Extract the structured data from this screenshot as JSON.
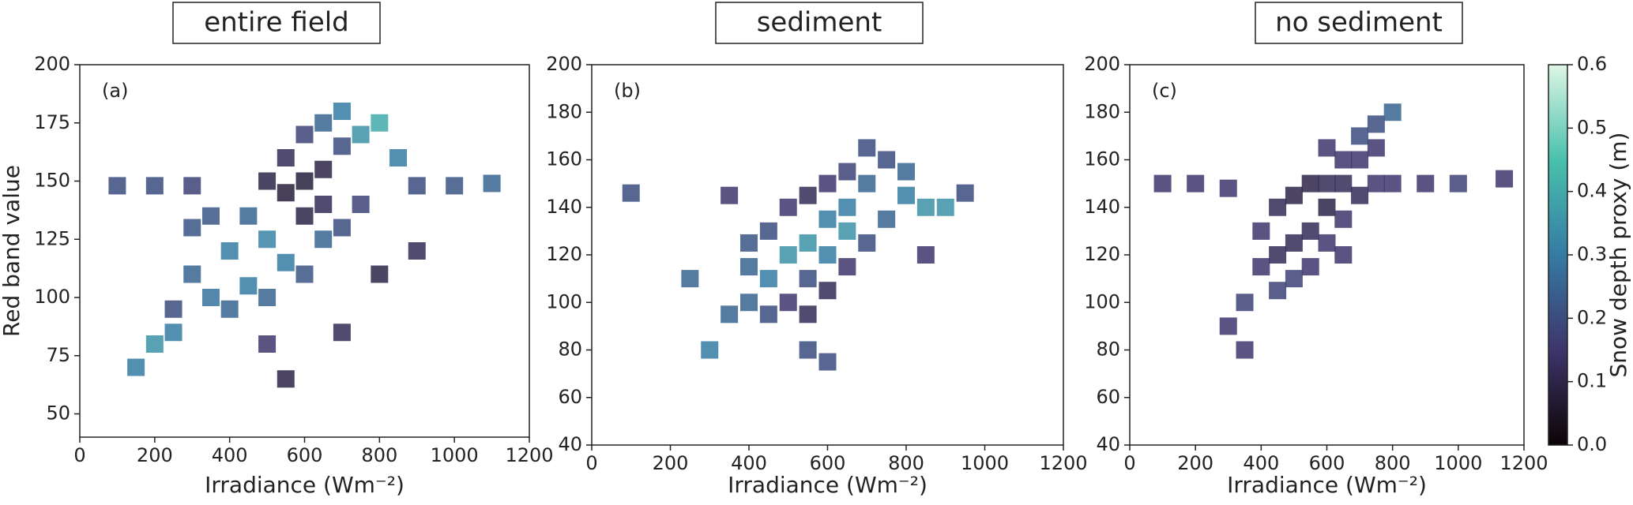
{
  "chart_data": [
    {
      "type": "scatter",
      "title": "entire field",
      "panel_label": "(a)",
      "xlabel": "Irradiance (Wm⁻²)",
      "ylabel": "Red band value",
      "xlim": [
        0,
        1200
      ],
      "xticks": [
        0,
        200,
        400,
        600,
        800,
        1000,
        1200
      ],
      "ylim": [
        40,
        200
      ],
      "yticks": [
        50,
        75,
        100,
        125,
        150,
        175,
        200
      ],
      "x": [
        100,
        200,
        300,
        900,
        1000,
        1100,
        500,
        550,
        600,
        650,
        600,
        550,
        650,
        650,
        700,
        750,
        800,
        700,
        600,
        850,
        300,
        350,
        400,
        450,
        500,
        550,
        400,
        300,
        350,
        500,
        600,
        650,
        700,
        750,
        250,
        450,
        150,
        200,
        250,
        500,
        700,
        800,
        900,
        550
      ],
      "y": [
        148,
        148,
        148,
        148,
        148,
        149,
        150,
        145,
        150,
        155,
        135,
        160,
        140,
        175,
        180,
        170,
        175,
        165,
        170,
        160,
        110,
        100,
        120,
        105,
        125,
        115,
        95,
        130,
        135,
        100,
        110,
        125,
        130,
        140,
        95,
        135,
        70,
        80,
        85,
        80,
        85,
        110,
        120,
        65
      ],
      "values": [
        0.2,
        0.2,
        0.18,
        0.2,
        0.22,
        0.25,
        0.1,
        0.08,
        0.08,
        0.1,
        0.1,
        0.12,
        0.12,
        0.25,
        0.3,
        0.35,
        0.4,
        0.2,
        0.18,
        0.3,
        0.25,
        0.28,
        0.3,
        0.3,
        0.32,
        0.3,
        0.25,
        0.22,
        0.22,
        0.25,
        0.22,
        0.25,
        0.2,
        0.18,
        0.2,
        0.25,
        0.3,
        0.35,
        0.3,
        0.15,
        0.12,
        0.1,
        0.12,
        0.1
      ]
    },
    {
      "type": "scatter",
      "title": "sediment",
      "panel_label": "(b)",
      "xlabel": "Irradiance (Wm⁻²)",
      "xlim": [
        0,
        1200
      ],
      "xticks": [
        0,
        200,
        400,
        600,
        800,
        1000,
        1200
      ],
      "ylim": [
        40,
        200
      ],
      "yticks": [
        40,
        60,
        80,
        100,
        120,
        140,
        160,
        180,
        200
      ],
      "x": [
        400,
        450,
        500,
        550,
        600,
        650,
        700,
        750,
        700,
        650,
        600,
        550,
        500,
        450,
        400,
        400,
        450,
        500,
        550,
        600,
        650,
        700,
        750,
        800,
        850,
        800,
        600,
        650,
        550,
        350,
        300,
        250,
        550,
        600,
        900,
        100,
        950,
        350,
        850
      ],
      "y": [
        100,
        110,
        120,
        125,
        135,
        140,
        150,
        160,
        165,
        155,
        150,
        145,
        140,
        130,
        125,
        115,
        95,
        100,
        95,
        105,
        115,
        125,
        135,
        145,
        140,
        155,
        120,
        130,
        110,
        95,
        80,
        110,
        80,
        75,
        140,
        146,
        146,
        145,
        120
      ],
      "values": [
        0.25,
        0.3,
        0.35,
        0.35,
        0.3,
        0.3,
        0.25,
        0.2,
        0.2,
        0.18,
        0.15,
        0.12,
        0.15,
        0.2,
        0.22,
        0.25,
        0.2,
        0.15,
        0.12,
        0.12,
        0.15,
        0.2,
        0.25,
        0.3,
        0.35,
        0.25,
        0.3,
        0.35,
        0.2,
        0.25,
        0.3,
        0.25,
        0.2,
        0.2,
        0.35,
        0.2,
        0.2,
        0.15,
        0.15
      ]
    },
    {
      "type": "scatter",
      "title": "no sediment",
      "panel_label": "(c)",
      "xlabel": "Irradiance (Wm⁻²)",
      "xlim": [
        0,
        1200
      ],
      "xticks": [
        0,
        200,
        400,
        600,
        800,
        1000,
        1200
      ],
      "ylim": [
        40,
        200
      ],
      "yticks": [
        40,
        60,
        80,
        100,
        120,
        140,
        160,
        180,
        200
      ],
      "x": [
        450,
        500,
        550,
        600,
        650,
        700,
        750,
        700,
        650,
        600,
        550,
        500,
        450,
        400,
        400,
        450,
        500,
        550,
        600,
        650,
        700,
        750,
        800,
        800,
        350,
        300,
        350,
        100,
        200,
        300,
        900,
        1000,
        1140,
        750,
        650,
        600
      ],
      "y": [
        120,
        125,
        130,
        140,
        150,
        160,
        165,
        145,
        135,
        125,
        115,
        110,
        105,
        115,
        130,
        140,
        145,
        150,
        150,
        160,
        170,
        175,
        150,
        180,
        100,
        90,
        80,
        150,
        150,
        148,
        150,
        150,
        152,
        150,
        120,
        165
      ],
      "values": [
        0.12,
        0.12,
        0.12,
        0.1,
        0.12,
        0.15,
        0.15,
        0.12,
        0.15,
        0.15,
        0.15,
        0.18,
        0.18,
        0.15,
        0.15,
        0.12,
        0.1,
        0.1,
        0.12,
        0.15,
        0.2,
        0.2,
        0.15,
        0.25,
        0.18,
        0.15,
        0.15,
        0.15,
        0.15,
        0.15,
        0.15,
        0.18,
        0.15,
        0.15,
        0.15,
        0.15
      ],
      "colorbar": {
        "label": "Snow depth proxy (m)",
        "lim": [
          0,
          0.6
        ],
        "ticks": [
          {
            "value": 0,
            "label": "0.0"
          },
          0.1,
          0.2,
          0.3,
          0.4,
          0.5,
          0.6
        ],
        "colormap": [
          "#0b0405",
          "#3e356b",
          "#357ba3",
          "#49c1ad",
          "#def5e5"
        ]
      }
    }
  ]
}
